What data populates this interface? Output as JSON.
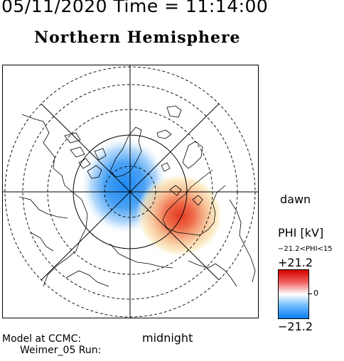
{
  "header": {
    "timestamp": "05/11/2020 Time = 11:14:00",
    "hemisphere": "Northern Hemisphere"
  },
  "map": {
    "orientation": {
      "dawn_label": "dawn",
      "midnight_label": "midnight"
    },
    "projection": "polar-stereographic",
    "lines": {
      "latitude_circles": [
        "solid",
        "dashed",
        "dashed"
      ],
      "grid_color": "#000000",
      "coastline_color": "#000000"
    },
    "potential_pattern": {
      "negative_cell": {
        "sign": "negative",
        "color": "#1e88f0"
      },
      "positive_cell": {
        "sign": "positive",
        "color": "#e03020"
      }
    }
  },
  "colorbar": {
    "title": "PHI [kV]",
    "range_text": "−21.2<PHI<15",
    "max_label": "+21.2",
    "mid_label": "0",
    "min_label": "−21.2",
    "max_value": 21.2,
    "min_value": -21.2,
    "colors": {
      "high": "#d40000",
      "mid": "#ffffff",
      "low": "#0a7ff5"
    }
  },
  "footer": {
    "model_line1": "Model at CCMC:",
    "model_line2": "Weimer_05 Run:"
  }
}
